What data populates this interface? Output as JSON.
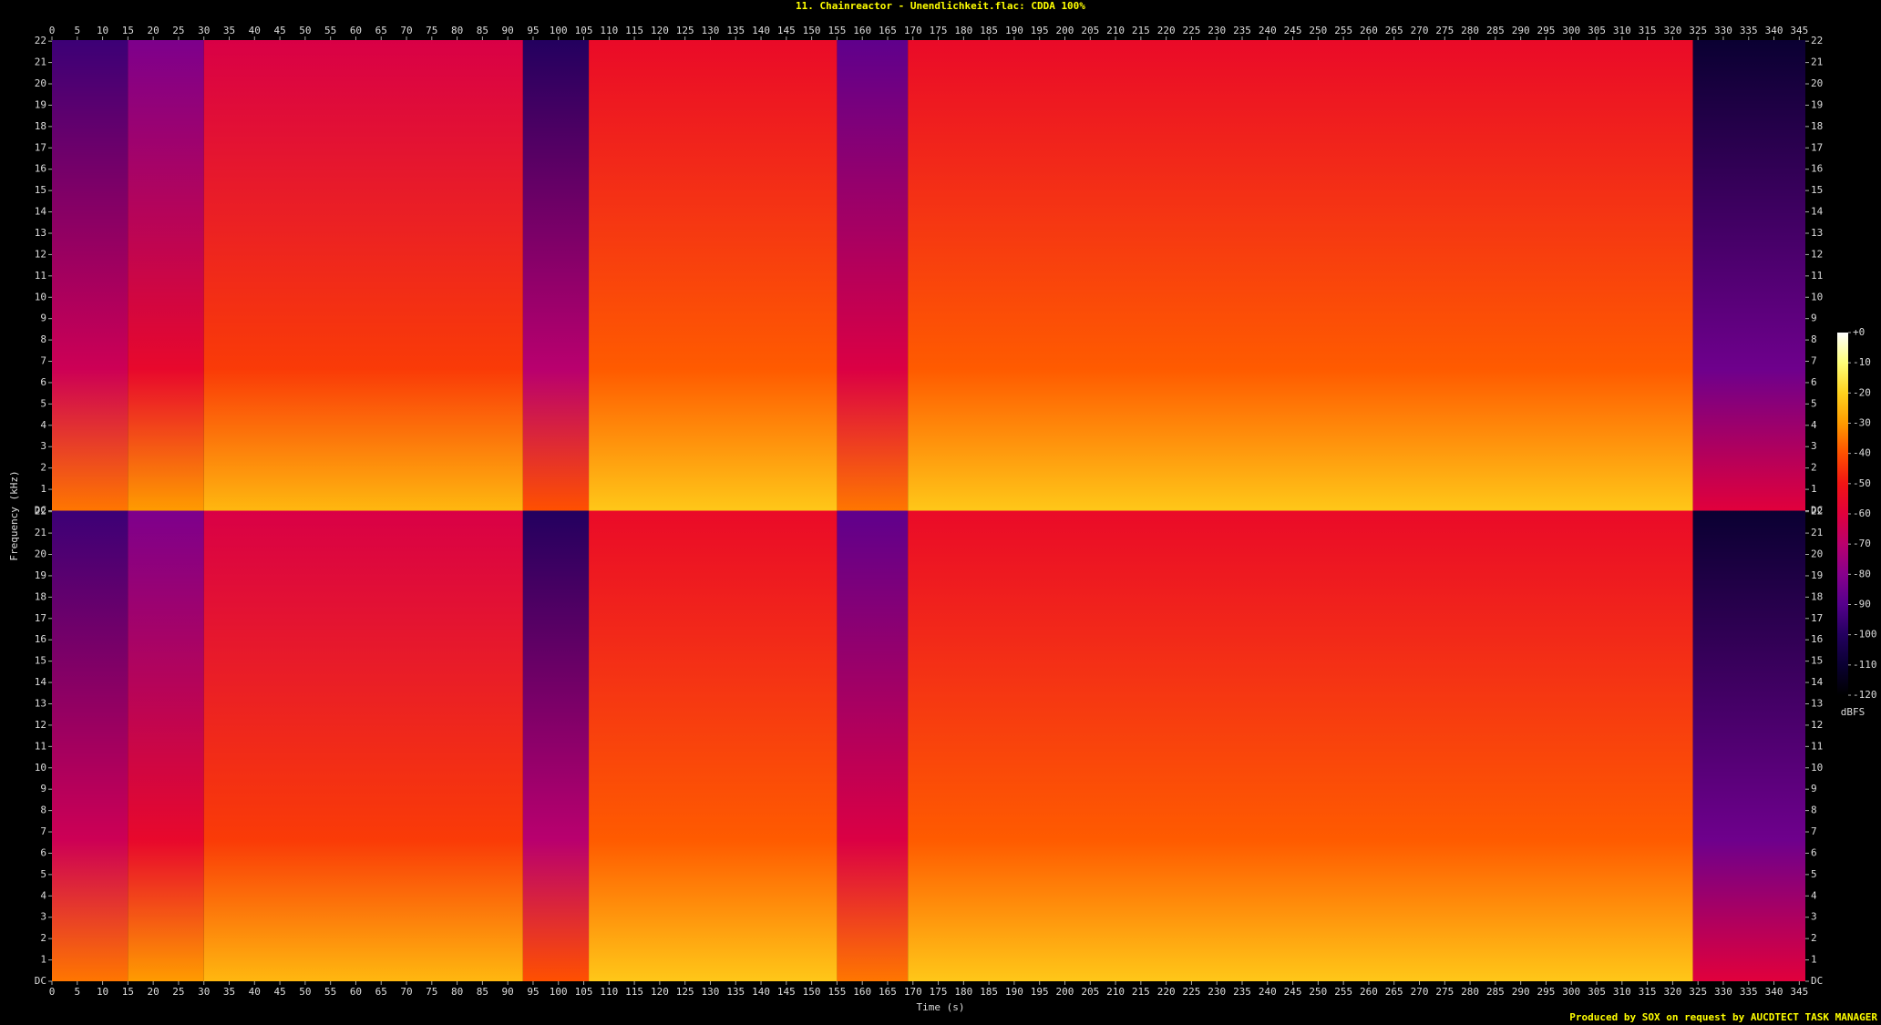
{
  "chart_data": {
    "type": "spectrogram",
    "title": "11. Chainreactor - Unendlichkeit.flac: CDDA 100%",
    "xlabel": "Time (s)",
    "ylabel": "Frequency (kHz)",
    "colorbar_label": "dBFS",
    "footer": "Produced by SOX on request by AUCDTECT TASK MANAGER",
    "channels": 2,
    "xlim": [
      0,
      346.2
    ],
    "xticks": [
      0,
      5,
      10,
      15,
      20,
      25,
      30,
      35,
      40,
      45,
      50,
      55,
      60,
      65,
      70,
      75,
      80,
      85,
      90,
      95,
      100,
      105,
      110,
      115,
      120,
      125,
      130,
      135,
      140,
      145,
      150,
      155,
      160,
      165,
      170,
      175,
      180,
      185,
      190,
      195,
      200,
      205,
      210,
      215,
      220,
      225,
      230,
      235,
      240,
      245,
      250,
      255,
      260,
      265,
      270,
      275,
      280,
      285,
      290,
      295,
      300,
      305,
      310,
      315,
      320,
      325,
      330,
      335,
      340,
      345
    ],
    "ylim": [
      0,
      22.05
    ],
    "yticks": [
      {
        "value": 0,
        "label": "DC"
      },
      1,
      2,
      3,
      4,
      5,
      6,
      7,
      8,
      9,
      10,
      11,
      12,
      13,
      14,
      15,
      16,
      17,
      18,
      19,
      20,
      21,
      22
    ],
    "clim": [
      -120,
      0
    ],
    "cticks": [
      {
        "value": 0,
        "label": "+0"
      },
      -10,
      -20,
      -30,
      -40,
      -50,
      -60,
      -70,
      -80,
      -90,
      -100,
      -110,
      -120
    ],
    "bins": [
      0,
      15,
      30,
      93,
      106,
      155,
      169,
      324,
      346.2
    ],
    "high_band_values": [
      -95,
      -82,
      -62,
      -100,
      -55,
      -88,
      -55,
      -110
    ],
    "low_band_values": [
      -35,
      -30,
      -25,
      -40,
      -22,
      -35,
      -22,
      -60
    ]
  }
}
